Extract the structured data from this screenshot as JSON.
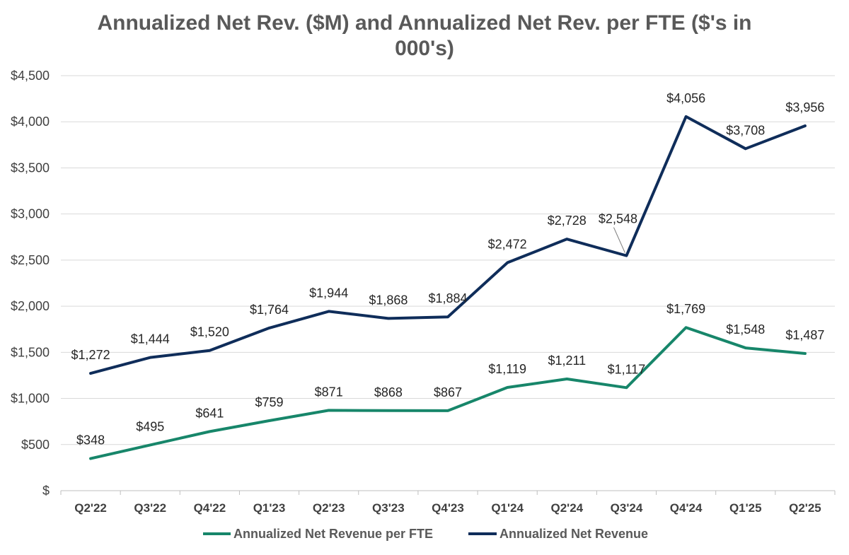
{
  "chart_data": {
    "type": "line",
    "title_line1": "Annualized Net Rev. ($M) and Annualized Net Rev. per FTE ($'s in",
    "title_line2": "000's)",
    "xlabel": "",
    "ylabel": "",
    "ylim": [
      0,
      4500
    ],
    "ytick_step": 500,
    "ytick_labels": [
      "$",
      "$500",
      "$1,000",
      "$1,500",
      "$2,000",
      "$2,500",
      "$3,000",
      "$3,500",
      "$4,000",
      "$4,500"
    ],
    "grid": true,
    "legend_position": "bottom",
    "categories": [
      "Q2'22",
      "Q3'22",
      "Q4'22",
      "Q1'23",
      "Q2'23",
      "Q3'23",
      "Q4'23",
      "Q1'24",
      "Q2'24",
      "Q3'24",
      "Q4'24",
      "Q1'25",
      "Q2'25"
    ],
    "series": [
      {
        "name": "Annualized Net Revenue per FTE",
        "color": "#17866a",
        "values": [
          348,
          495,
          641,
          759,
          871,
          868,
          867,
          1119,
          1211,
          1117,
          1769,
          1548,
          1487
        ],
        "labels": [
          "$348",
          "$495",
          "$641",
          "$759",
          "$871",
          "$868",
          "$867",
          "$1,119",
          "$1,211",
          "$1,117",
          "$1,769",
          "$1,548",
          "$1,487"
        ]
      },
      {
        "name": "Annualized Net Revenue",
        "color": "#0f2d5a",
        "values": [
          1272,
          1444,
          1520,
          1764,
          1944,
          1868,
          1884,
          2472,
          2728,
          2548,
          4056,
          3708,
          3956
        ],
        "labels": [
          "$1,272",
          "$1,444",
          "$1,520",
          "$1,764",
          "$1,944",
          "$1,868",
          "$1,884",
          "$2,472",
          "$2,728",
          "$2,548",
          "$4,056",
          "$3,708",
          "$3,956"
        ]
      }
    ]
  }
}
